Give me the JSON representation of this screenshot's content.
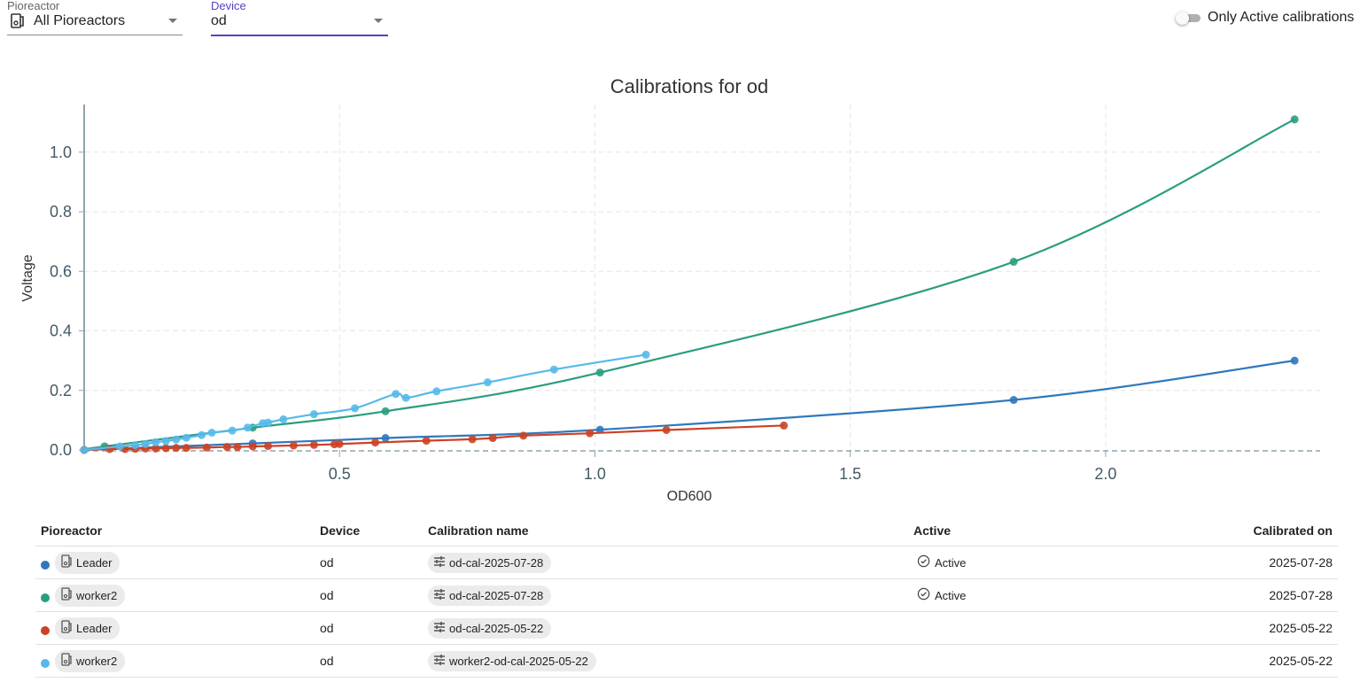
{
  "filters": {
    "pioreactor_label": "Pioreactor",
    "pioreactor_value": "All Pioreactors",
    "device_label": "Device",
    "device_value": "od",
    "toggle_label": "Only Active calibrations",
    "toggle_on": false
  },
  "chart_data": {
    "type": "line",
    "title": "Calibrations for od",
    "xlabel": "OD600",
    "ylabel": "Voltage",
    "xlim": [
      0,
      2.42
    ],
    "ylim": [
      0,
      1.16
    ],
    "xticks": [
      0.5,
      1.0,
      1.5,
      2.0
    ],
    "xtick_labels": [
      "0.5",
      "1.0",
      "1.5",
      "2.0"
    ],
    "yticks": [
      0,
      0.2,
      0.4,
      0.6,
      0.8,
      1.0
    ],
    "ytick_labels": [
      "0.0",
      "0.2",
      "0.4",
      "0.6",
      "0.8",
      "1.0"
    ],
    "grid": true,
    "series": [
      {
        "name": "Leader od-cal-2025-07-28",
        "color": "#2f78be",
        "x": [
          0,
          0.33,
          0.59,
          1.01,
          1.82,
          2.37
        ],
        "y": [
          0,
          0.022,
          0.04,
          0.068,
          0.168,
          0.3
        ]
      },
      {
        "name": "worker2 od-cal-2025-07-28",
        "color": "#2a9d80",
        "x": [
          0,
          0.04,
          0.33,
          0.59,
          1.01,
          1.82,
          2.37
        ],
        "y": [
          0,
          0.012,
          0.075,
          0.13,
          0.26,
          0.632,
          1.11
        ]
      },
      {
        "name": "Leader od-cal-2025-05-22",
        "color": "#cc4125",
        "x": [
          0,
          0.05,
          0.08,
          0.1,
          0.12,
          0.14,
          0.16,
          0.18,
          0.2,
          0.24,
          0.28,
          0.3,
          0.33,
          0.36,
          0.41,
          0.45,
          0.49,
          0.5,
          0.57,
          0.67,
          0.76,
          0.8,
          0.86,
          0.99,
          1.14,
          1.37
        ],
        "y": [
          0,
          0.003,
          0.003,
          0.004,
          0.005,
          0.005,
          0.006,
          0.007,
          0.007,
          0.008,
          0.01,
          0.01,
          0.012,
          0.013,
          0.015,
          0.017,
          0.019,
          0.02,
          0.025,
          0.031,
          0.036,
          0.04,
          0.048,
          0.056,
          0.067,
          0.082
        ]
      },
      {
        "name": "worker2 worker2-od-cal-2025-05-22",
        "color": "#56b9ea",
        "x": [
          0,
          0.07,
          0.1,
          0.12,
          0.14,
          0.16,
          0.18,
          0.2,
          0.23,
          0.25,
          0.29,
          0.32,
          0.35,
          0.36,
          0.39,
          0.45,
          0.53,
          0.61,
          0.63,
          0.69,
          0.79,
          0.92,
          1.1
        ],
        "y": [
          0,
          0.012,
          0.016,
          0.02,
          0.026,
          0.03,
          0.035,
          0.041,
          0.05,
          0.058,
          0.065,
          0.075,
          0.09,
          0.092,
          0.103,
          0.12,
          0.14,
          0.188,
          0.175,
          0.197,
          0.227,
          0.27,
          0.32
        ]
      }
    ]
  },
  "table": {
    "headers": [
      "Pioreactor",
      "Device",
      "Calibration name",
      "Active",
      "Calibrated on"
    ],
    "rows": [
      {
        "color": "#2f78be",
        "unit": "Leader",
        "device": "od",
        "name": "od-cal-2025-07-28",
        "active": "Active",
        "date": "2025-07-28"
      },
      {
        "color": "#2a9d80",
        "unit": "worker2",
        "device": "od",
        "name": "od-cal-2025-07-28",
        "active": "Active",
        "date": "2025-07-28"
      },
      {
        "color": "#cc4125",
        "unit": "Leader",
        "device": "od",
        "name": "od-cal-2025-05-22",
        "active": "",
        "date": "2025-05-22"
      },
      {
        "color": "#56b9ea",
        "unit": "worker2",
        "device": "od",
        "name": "worker2-od-cal-2025-05-22",
        "active": "",
        "date": "2025-05-22"
      }
    ]
  }
}
